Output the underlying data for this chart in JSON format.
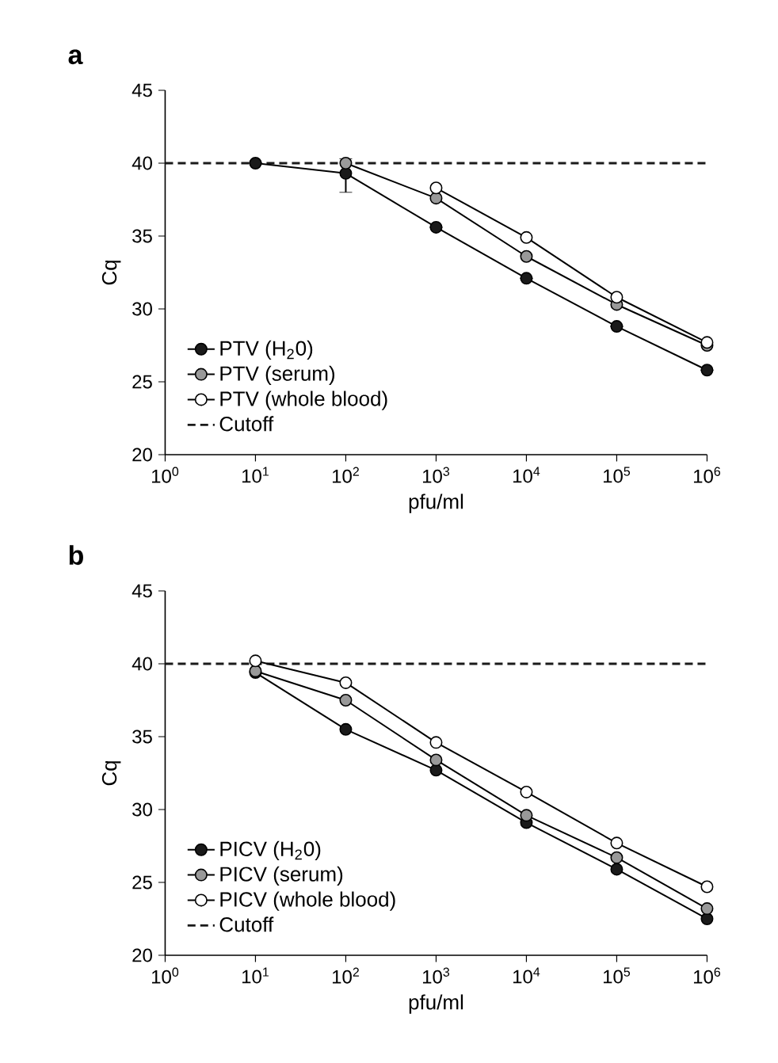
{
  "chart_data": [
    {
      "type": "line",
      "title": "a",
      "xlabel": "pfu/ml",
      "ylabel": "Cq",
      "log": "x",
      "marker": "circle",
      "legend": "bottom left",
      "xlim": [
        1,
        1000000
      ],
      "ylim": [
        20,
        45
      ],
      "xticks": [
        {
          "value": 1,
          "label": "10$^{0}$"
        },
        {
          "value": 10,
          "label": "10$^{1}$"
        },
        {
          "value": 100,
          "label": "10$^{2}$"
        },
        {
          "value": 1000,
          "label": "10$^{3}$"
        },
        {
          "value": 10000,
          "label": "10$^{4}$"
        },
        {
          "value": 100000,
          "label": "10$^{5}$"
        },
        {
          "value": 1000000,
          "label": "10$^{6}$"
        }
      ],
      "yticks": [
        20,
        25,
        30,
        35,
        40,
        45
      ],
      "x": [
        10,
        100,
        1000,
        10000,
        100000,
        1000000
      ],
      "series": [
        {
          "name": "PTV (H$_{2}$0)",
          "color": "#1a1a1a",
          "values": [
            40,
            39.3,
            35.6,
            32.1,
            28.8,
            25.8
          ],
          "errors": [
            null,
            [
              38.0,
              40.3
            ],
            null,
            null,
            null,
            null
          ]
        },
        {
          "name": "PTV (serum)",
          "color": "#999999",
          "values": [
            null,
            40,
            37.6,
            33.6,
            30.3,
            27.5
          ]
        },
        {
          "name": "PTV (whole blood)",
          "color": "#ffffff",
          "values": [
            null,
            null,
            38.3,
            34.9,
            30.8,
            27.7
          ]
        }
      ],
      "ref_lines": [
        {
          "axis": "y",
          "value": 40,
          "label": "Cutoff",
          "line_style": "dashed",
          "color": "#1a1a1a"
        }
      ]
    },
    {
      "type": "line",
      "title": "b",
      "xlabel": "pfu/ml",
      "ylabel": "Cq",
      "log": "x",
      "marker": "circle",
      "legend": "bottom left",
      "xlim": [
        1,
        1000000
      ],
      "ylim": [
        20,
        45
      ],
      "xticks": [
        {
          "value": 1,
          "label": "10$^{0}$"
        },
        {
          "value": 10,
          "label": "10$^{1}$"
        },
        {
          "value": 100,
          "label": "10$^{2}$"
        },
        {
          "value": 1000,
          "label": "10$^{3}$"
        },
        {
          "value": 10000,
          "label": "10$^{4}$"
        },
        {
          "value": 100000,
          "label": "10$^{5}$"
        },
        {
          "value": 1000000,
          "label": "10$^{6}$"
        }
      ],
      "yticks": [
        20,
        25,
        30,
        35,
        40,
        45
      ],
      "x": [
        10,
        100,
        1000,
        10000,
        100000,
        1000000
      ],
      "series": [
        {
          "name": "PICV (H$_{2}$0)",
          "color": "#1a1a1a",
          "values": [
            39.4,
            35.5,
            32.7,
            29.1,
            25.9,
            22.5
          ]
        },
        {
          "name": "PICV (serum)",
          "color": "#999999",
          "values": [
            39.5,
            37.5,
            33.4,
            29.6,
            26.7,
            23.2
          ]
        },
        {
          "name": "PICV (whole blood)",
          "color": "#ffffff",
          "values": [
            40.2,
            38.7,
            34.6,
            31.2,
            27.7,
            24.7
          ]
        }
      ],
      "ref_lines": [
        {
          "axis": "y",
          "value": 40,
          "label": "Cutoff",
          "line_style": "dashed",
          "color": "#1a1a1a"
        }
      ]
    }
  ]
}
